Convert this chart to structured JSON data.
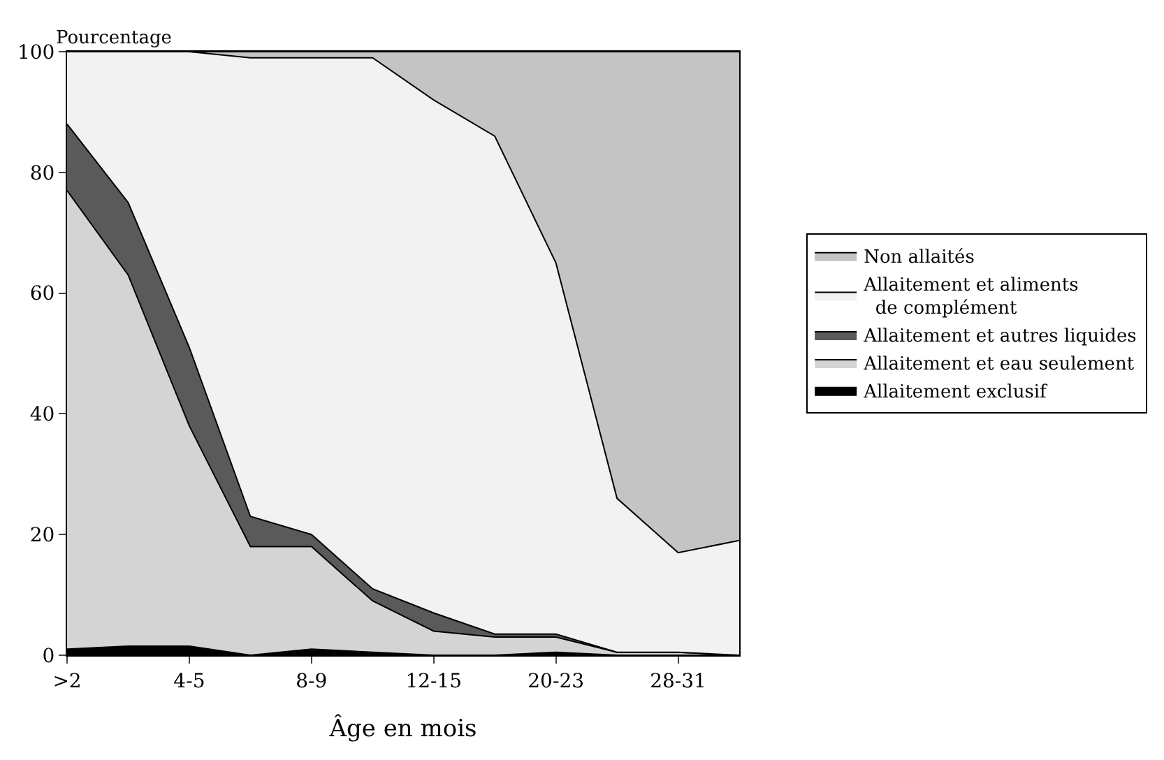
{
  "chart_data": {
    "type": "area",
    "stacked": true,
    "xlabel": "Âge en mois",
    "ylabel": "Pourcentage",
    "categories": [
      ">2",
      null,
      "4-5",
      null,
      "8-9",
      null,
      "12-15",
      null,
      "20-23",
      null,
      "28-31",
      null
    ],
    "ylim": [
      0,
      100
    ],
    "yticks": [
      0,
      20,
      40,
      60,
      80,
      100
    ],
    "legend": "right",
    "series": [
      {
        "name": "Allaitement exclusif",
        "color": "#000000",
        "values": [
          1,
          1.5,
          1.5,
          0,
          1,
          0.5,
          0,
          0,
          0.5,
          0,
          0,
          0
        ]
      },
      {
        "name": "Allaitement et eau seulement",
        "color": "#d4d4d4",
        "values": [
          76,
          61.5,
          36.5,
          18,
          17,
          8.5,
          4,
          3,
          2.5,
          0.5,
          0.5,
          0
        ]
      },
      {
        "name": "Allaitement et autres liquides",
        "color": "#5a5a5a",
        "values": [
          11,
          12,
          13,
          5,
          2,
          2,
          3,
          0.5,
          0.5,
          0,
          0,
          0
        ]
      },
      {
        "name": "Allaitement et aliments\nde complément",
        "color": "#f2f2f2",
        "values": [
          12,
          25,
          49,
          76,
          79,
          88,
          85,
          82.5,
          61.5,
          25.5,
          16.5,
          19
        ]
      },
      {
        "name": "Non allaités",
        "color": "#c4c4c4",
        "values": [
          0,
          0,
          0,
          1,
          1,
          1,
          8,
          14,
          35,
          74,
          83,
          81
        ]
      }
    ]
  }
}
